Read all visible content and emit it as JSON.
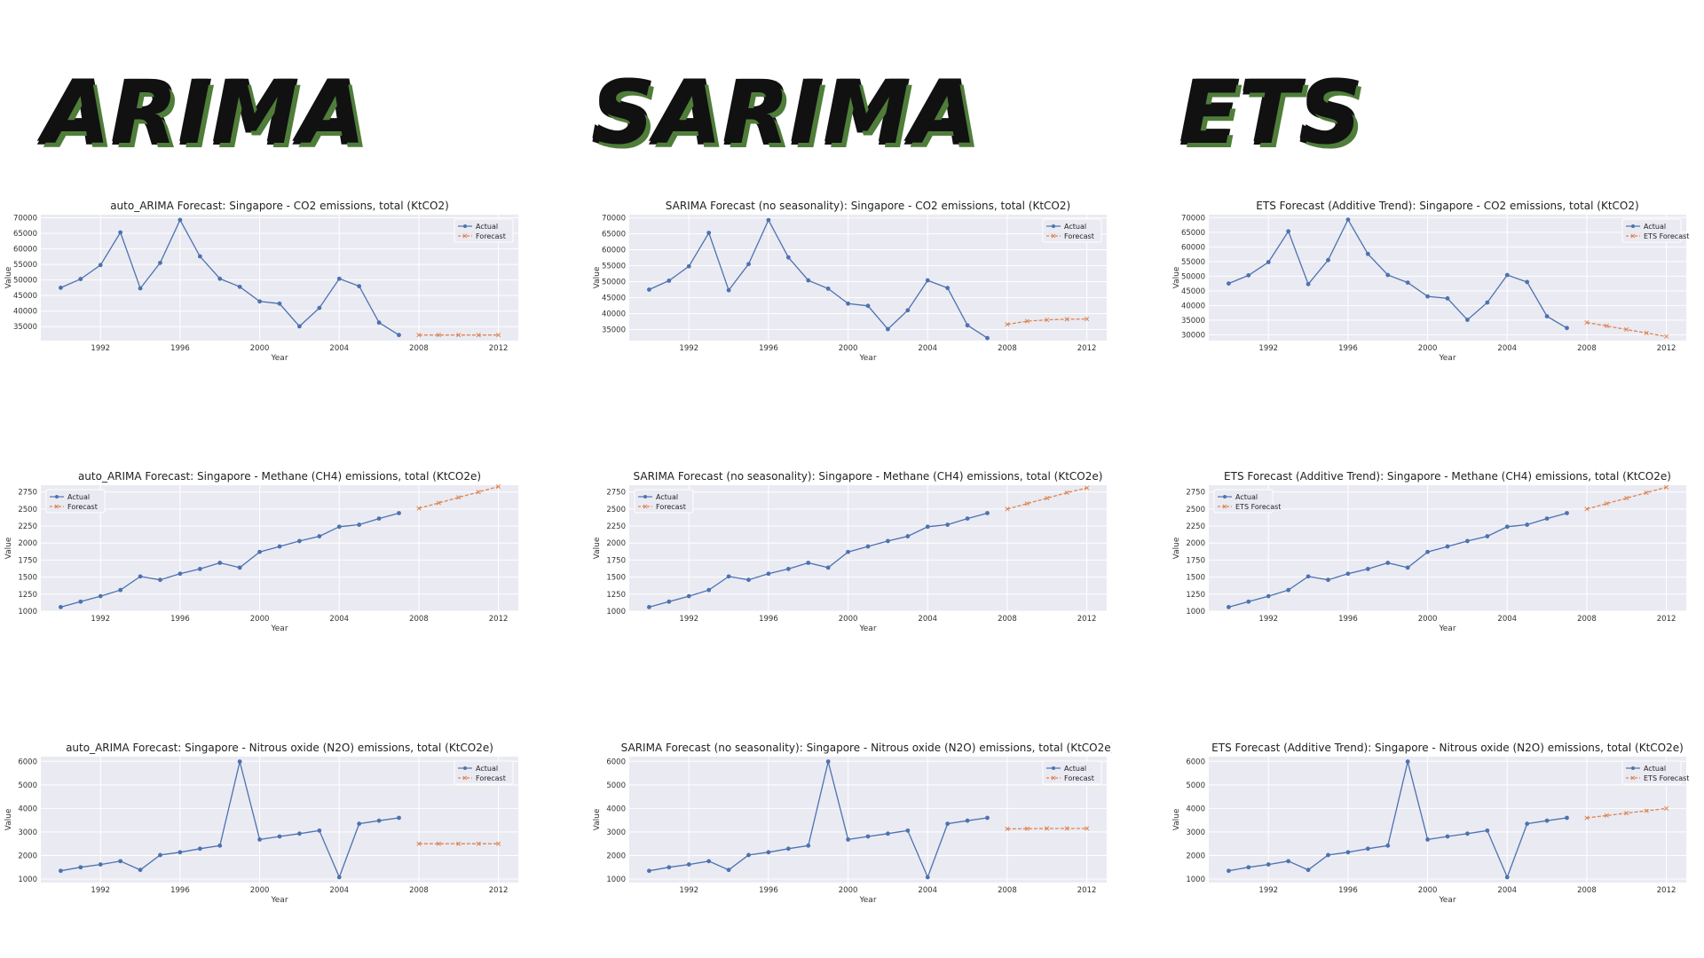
{
  "headings": [
    "ARIMA",
    "SARIMA",
    "ETS"
  ],
  "colors": {
    "actual": "#4c72b0",
    "forecast": "#dd8452",
    "panel": "#eaeaf2",
    "grid": "#ffffff",
    "heading_shadow": "#4f7d3a"
  },
  "chart_data": [
    {
      "type": "line",
      "title": "auto_ARIMA Forecast: Singapore - CO2 emissions, total (KtCO2)",
      "xlabel": "Year",
      "ylabel": "Value",
      "xlim": [
        1989,
        2013
      ],
      "ylim": [
        30500,
        71000
      ],
      "xticks": [
        1992,
        1996,
        2000,
        2004,
        2008,
        2012
      ],
      "yticks": [
        35000,
        40000,
        45000,
        50000,
        55000,
        60000,
        65000,
        70000
      ],
      "grid": true,
      "legend": "top-right",
      "series": [
        {
          "name": "Actual",
          "x": [
            1990,
            1991,
            1992,
            1993,
            1994,
            1995,
            1996,
            1997,
            1998,
            1999,
            2000,
            2001,
            2002,
            2003,
            2004,
            2005,
            2006,
            2007
          ],
          "values": [
            47500,
            50300,
            54800,
            65300,
            47300,
            55500,
            69300,
            57600,
            50400,
            47800,
            43100,
            42400,
            35100,
            41000,
            50400,
            48000,
            36300,
            32300
          ]
        },
        {
          "name": "Forecast",
          "x": [
            2008,
            2009,
            2010,
            2011,
            2012
          ],
          "values": [
            32300,
            32300,
            32300,
            32300,
            32300
          ]
        }
      ]
    },
    {
      "type": "line",
      "title": "SARIMA Forecast (no seasonality): Singapore - CO2 emissions, total (KtCO2)",
      "xlabel": "Year",
      "ylabel": "Value",
      "xlim": [
        1989,
        2013
      ],
      "ylim": [
        31500,
        71000
      ],
      "xticks": [
        1992,
        1996,
        2000,
        2004,
        2008,
        2012
      ],
      "yticks": [
        35000,
        40000,
        45000,
        50000,
        55000,
        60000,
        65000,
        70000
      ],
      "grid": true,
      "legend": "top-right",
      "series": [
        {
          "name": "Actual",
          "x": [
            1990,
            1991,
            1992,
            1993,
            1994,
            1995,
            1996,
            1997,
            1998,
            1999,
            2000,
            2001,
            2002,
            2003,
            2004,
            2005,
            2006,
            2007
          ],
          "values": [
            47500,
            50300,
            54800,
            65300,
            47300,
            55500,
            69300,
            57600,
            50400,
            47800,
            43100,
            42400,
            35100,
            41000,
            50400,
            48000,
            36300,
            32300
          ]
        },
        {
          "name": "Forecast",
          "x": [
            2008,
            2009,
            2010,
            2011,
            2012
          ],
          "values": [
            36600,
            37600,
            38000,
            38200,
            38300
          ]
        }
      ]
    },
    {
      "type": "line",
      "title": "ETS Forecast (Additive Trend): Singapore - CO2 emissions, total (KtCO2)",
      "xlabel": "Year",
      "ylabel": "Value",
      "xlim": [
        1989,
        2013
      ],
      "ylim": [
        28000,
        71000
      ],
      "xticks": [
        1992,
        1996,
        2000,
        2004,
        2008,
        2012
      ],
      "yticks": [
        30000,
        35000,
        40000,
        45000,
        50000,
        55000,
        60000,
        65000,
        70000
      ],
      "grid": true,
      "legend": "top-right",
      "series": [
        {
          "name": "Actual",
          "x": [
            1990,
            1991,
            1992,
            1993,
            1994,
            1995,
            1996,
            1997,
            1998,
            1999,
            2000,
            2001,
            2002,
            2003,
            2004,
            2005,
            2006,
            2007
          ],
          "values": [
            47500,
            50300,
            54800,
            65300,
            47300,
            55500,
            69300,
            57600,
            50400,
            47800,
            43100,
            42400,
            35100,
            41000,
            50400,
            48000,
            36300,
            32300
          ]
        },
        {
          "name": "ETS Forecast",
          "x": [
            2008,
            2009,
            2010,
            2011,
            2012
          ],
          "values": [
            34200,
            33000,
            31800,
            30600,
            29400
          ]
        }
      ]
    },
    {
      "type": "line",
      "title": "auto_ARIMA Forecast: Singapore - Methane (CH4) emissions, total (KtCO2e)",
      "xlabel": "Year",
      "ylabel": "Value",
      "xlim": [
        1989,
        2013
      ],
      "ylim": [
        1000,
        2850
      ],
      "xticks": [
        1992,
        1996,
        2000,
        2004,
        2008,
        2012
      ],
      "yticks": [
        1000,
        1250,
        1500,
        1750,
        2000,
        2250,
        2500,
        2750
      ],
      "grid": true,
      "legend": "top-left",
      "series": [
        {
          "name": "Actual",
          "x": [
            1990,
            1991,
            1992,
            1993,
            1994,
            1995,
            1996,
            1997,
            1998,
            1999,
            2000,
            2001,
            2002,
            2003,
            2004,
            2005,
            2006,
            2007
          ],
          "values": [
            1060,
            1140,
            1220,
            1310,
            1510,
            1460,
            1550,
            1620,
            1710,
            1640,
            1870,
            1950,
            2030,
            2100,
            2240,
            2270,
            2360,
            2440
          ]
        },
        {
          "name": "Forecast",
          "x": [
            2008,
            2009,
            2010,
            2011,
            2012
          ],
          "values": [
            2510,
            2590,
            2670,
            2750,
            2830
          ]
        }
      ]
    },
    {
      "type": "line",
      "title": "SARIMA Forecast (no seasonality): Singapore - Methane (CH4) emissions, total (KtCO2e)",
      "xlabel": "Year",
      "ylabel": "Value",
      "xlim": [
        1989,
        2013
      ],
      "ylim": [
        1000,
        2850
      ],
      "xticks": [
        1992,
        1996,
        2000,
        2004,
        2008,
        2012
      ],
      "yticks": [
        1000,
        1250,
        1500,
        1750,
        2000,
        2250,
        2500,
        2750
      ],
      "grid": true,
      "legend": "top-left",
      "series": [
        {
          "name": "Actual",
          "x": [
            1990,
            1991,
            1992,
            1993,
            1994,
            1995,
            1996,
            1997,
            1998,
            1999,
            2000,
            2001,
            2002,
            2003,
            2004,
            2005,
            2006,
            2007
          ],
          "values": [
            1060,
            1140,
            1220,
            1310,
            1510,
            1460,
            1550,
            1620,
            1710,
            1640,
            1870,
            1950,
            2030,
            2100,
            2240,
            2270,
            2360,
            2440
          ]
        },
        {
          "name": "Forecast",
          "x": [
            2008,
            2009,
            2010,
            2011,
            2012
          ],
          "values": [
            2500,
            2580,
            2660,
            2740,
            2810
          ]
        }
      ]
    },
    {
      "type": "line",
      "title": "ETS Forecast (Additive Trend): Singapore - Methane (CH4) emissions, total (KtCO2e)",
      "xlabel": "Year",
      "ylabel": "Value",
      "xlim": [
        1989,
        2013
      ],
      "ylim": [
        1000,
        2850
      ],
      "xticks": [
        1992,
        1996,
        2000,
        2004,
        2008,
        2012
      ],
      "yticks": [
        1000,
        1250,
        1500,
        1750,
        2000,
        2250,
        2500,
        2750
      ],
      "grid": true,
      "legend": "top-left",
      "series": [
        {
          "name": "Actual",
          "x": [
            1990,
            1991,
            1992,
            1993,
            1994,
            1995,
            1996,
            1997,
            1998,
            1999,
            2000,
            2001,
            2002,
            2003,
            2004,
            2005,
            2006,
            2007
          ],
          "values": [
            1060,
            1140,
            1220,
            1310,
            1510,
            1460,
            1550,
            1620,
            1710,
            1640,
            1870,
            1950,
            2030,
            2100,
            2240,
            2270,
            2360,
            2440
          ]
        },
        {
          "name": "ETS Forecast",
          "x": [
            2008,
            2009,
            2010,
            2011,
            2012
          ],
          "values": [
            2500,
            2580,
            2660,
            2740,
            2820
          ]
        }
      ]
    },
    {
      "type": "line",
      "title": "auto_ARIMA Forecast: Singapore - Nitrous oxide (N2O) emissions, total (KtCO2e)",
      "xlabel": "Year",
      "ylabel": "Value",
      "xlim": [
        1989,
        2013
      ],
      "ylim": [
        850,
        6200
      ],
      "xticks": [
        1992,
        1996,
        2000,
        2004,
        2008,
        2012
      ],
      "yticks": [
        1000,
        2000,
        3000,
        4000,
        5000,
        6000
      ],
      "grid": true,
      "legend": "top-right",
      "series": [
        {
          "name": "Actual",
          "x": [
            1990,
            1991,
            1992,
            1993,
            1994,
            1995,
            1996,
            1997,
            1998,
            1999,
            2000,
            2001,
            2002,
            2003,
            2004,
            2005,
            2006,
            2007
          ],
          "values": [
            1350,
            1500,
            1620,
            1760,
            1390,
            2020,
            2140,
            2290,
            2420,
            5990,
            2680,
            2810,
            2930,
            3060,
            1080,
            3350,
            3480,
            3600
          ]
        },
        {
          "name": "Forecast",
          "x": [
            2008,
            2009,
            2010,
            2011,
            2012
          ],
          "values": [
            2500,
            2500,
            2500,
            2500,
            2500
          ]
        }
      ]
    },
    {
      "type": "line",
      "title": "SARIMA Forecast (no seasonality): Singapore - Nitrous oxide (N2O) emissions, total (KtCO2e)",
      "xlabel": "Year",
      "ylabel": "Value",
      "xlim": [
        1989,
        2013
      ],
      "ylim": [
        850,
        6200
      ],
      "xticks": [
        1992,
        1996,
        2000,
        2004,
        2008,
        2012
      ],
      "yticks": [
        1000,
        2000,
        3000,
        4000,
        5000,
        6000
      ],
      "grid": true,
      "legend": "top-right",
      "series": [
        {
          "name": "Actual",
          "x": [
            1990,
            1991,
            1992,
            1993,
            1994,
            1995,
            1996,
            1997,
            1998,
            1999,
            2000,
            2001,
            2002,
            2003,
            2004,
            2005,
            2006,
            2007
          ],
          "values": [
            1350,
            1500,
            1620,
            1760,
            1390,
            2020,
            2140,
            2290,
            2420,
            5990,
            2680,
            2810,
            2930,
            3060,
            1080,
            3350,
            3480,
            3600
          ]
        },
        {
          "name": "Forecast",
          "x": [
            2008,
            2009,
            2010,
            2011,
            2012
          ],
          "values": [
            3130,
            3140,
            3150,
            3150,
            3150
          ]
        }
      ]
    },
    {
      "type": "line",
      "title": "ETS Forecast (Additive Trend): Singapore - Nitrous oxide (N2O) emissions, total (KtCO2e)",
      "xlabel": "Year",
      "ylabel": "Value",
      "xlim": [
        1989,
        2013
      ],
      "ylim": [
        850,
        6200
      ],
      "xticks": [
        1992,
        1996,
        2000,
        2004,
        2008,
        2012
      ],
      "yticks": [
        1000,
        2000,
        3000,
        4000,
        5000,
        6000
      ],
      "grid": true,
      "legend": "top-right",
      "series": [
        {
          "name": "Actual",
          "x": [
            1990,
            1991,
            1992,
            1993,
            1994,
            1995,
            1996,
            1997,
            1998,
            1999,
            2000,
            2001,
            2002,
            2003,
            2004,
            2005,
            2006,
            2007
          ],
          "values": [
            1350,
            1500,
            1620,
            1760,
            1390,
            2020,
            2140,
            2290,
            2420,
            5990,
            2680,
            2810,
            2930,
            3060,
            1080,
            3350,
            3480,
            3600
          ]
        },
        {
          "name": "ETS Forecast",
          "x": [
            2008,
            2009,
            2010,
            2011,
            2012
          ],
          "values": [
            3600,
            3700,
            3800,
            3900,
            4000
          ]
        }
      ]
    }
  ]
}
